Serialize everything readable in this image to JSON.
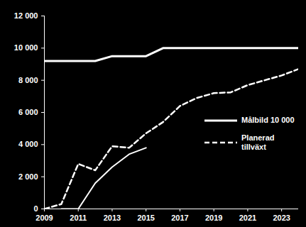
{
  "chart_data": {
    "type": "line",
    "x": [
      2009,
      2010,
      2011,
      2012,
      2013,
      2014,
      2015,
      2016,
      2017,
      2018,
      2019,
      2020,
      2021,
      2022,
      2023,
      2024
    ],
    "series": [
      {
        "name": "Målbild 10 000",
        "color": "#ffffff",
        "line_style": "solid",
        "values": [
          9200,
          9200,
          9200,
          9200,
          9500,
          9500,
          9500,
          10000,
          10000,
          10000,
          10000,
          10000,
          10000,
          10000,
          10000,
          10000
        ]
      },
      {
        "name": "Planerad tillväxt",
        "color": "#ffffff",
        "line_style": "dashed",
        "values": [
          0,
          300,
          2800,
          2400,
          3900,
          3800,
          4700,
          5400,
          6400,
          6900,
          7200,
          7250,
          7700,
          8000,
          8300,
          8700
        ]
      },
      {
        "color": "#ffffff",
        "line_style": "solid",
        "values": [
          null,
          0,
          0,
          1600,
          2600,
          3400,
          3800,
          null,
          null,
          null,
          null,
          null,
          null,
          null,
          null,
          null
        ]
      }
    ],
    "xlim": [
      2009,
      2024
    ],
    "xticks": [
      2009,
      2011,
      2013,
      2015,
      2017,
      2019,
      2021,
      2023
    ],
    "ylim": [
      0,
      12000
    ],
    "yticks": [
      0,
      {
        "value": 2000,
        "label": "2 000"
      },
      {
        "value": 4000,
        "label": "4 000"
      },
      {
        "value": 6000,
        "label": "6 000"
      },
      {
        "value": 8000,
        "label": "8 000"
      },
      {
        "value": 10000,
        "label": "10 000"
      },
      {
        "value": 12000,
        "label": "12 000"
      }
    ],
    "grid": false,
    "legend": "right"
  }
}
